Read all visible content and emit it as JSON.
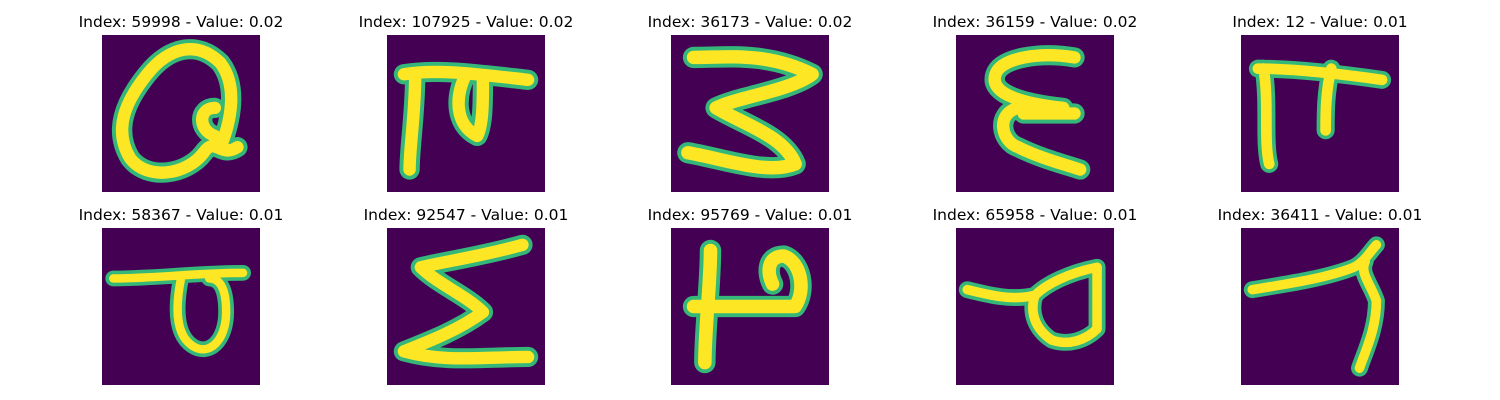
{
  "panels": [
    {
      "index": "59998",
      "value": "0.02",
      "title": "Index: 59998 - Value: 0.02",
      "glyph": "a-loop"
    },
    {
      "index": "107925",
      "value": "0.02",
      "title": "Index: 107925 - Value: 0.02",
      "glyph": "pi-shape"
    },
    {
      "index": "36173",
      "value": "0.02",
      "title": "Index: 36173 - Value: 0.02",
      "glyph": "three-shape"
    },
    {
      "index": "36159",
      "value": "0.02",
      "title": "Index: 36159 - Value: 0.02",
      "glyph": "epsilon-shape"
    },
    {
      "index": "12",
      "value": "0.01",
      "title": "Index: 12 - Value: 0.01",
      "glyph": "pi-shape-narrow"
    },
    {
      "index": "58367",
      "value": "0.01",
      "title": "Index: 58367 - Value: 0.01",
      "glyph": "p-bar-shape"
    },
    {
      "index": "92547",
      "value": "0.01",
      "title": "Index: 92547 - Value: 0.01",
      "glyph": "sigma-shape"
    },
    {
      "index": "95769",
      "value": "0.01",
      "title": "Index: 95769 - Value: 0.01",
      "glyph": "p-stem-shape"
    },
    {
      "index": "65958",
      "value": "0.01",
      "title": "Index: 65958 - Value: 0.01",
      "glyph": "q-loop-shape"
    },
    {
      "index": "36411",
      "value": "0.01",
      "title": "Index: 36411 - Value: 0.01",
      "glyph": "seven-shape"
    }
  ],
  "colors": {
    "background": "#440154",
    "stroke": "#fde725",
    "edge": "#35b779"
  }
}
